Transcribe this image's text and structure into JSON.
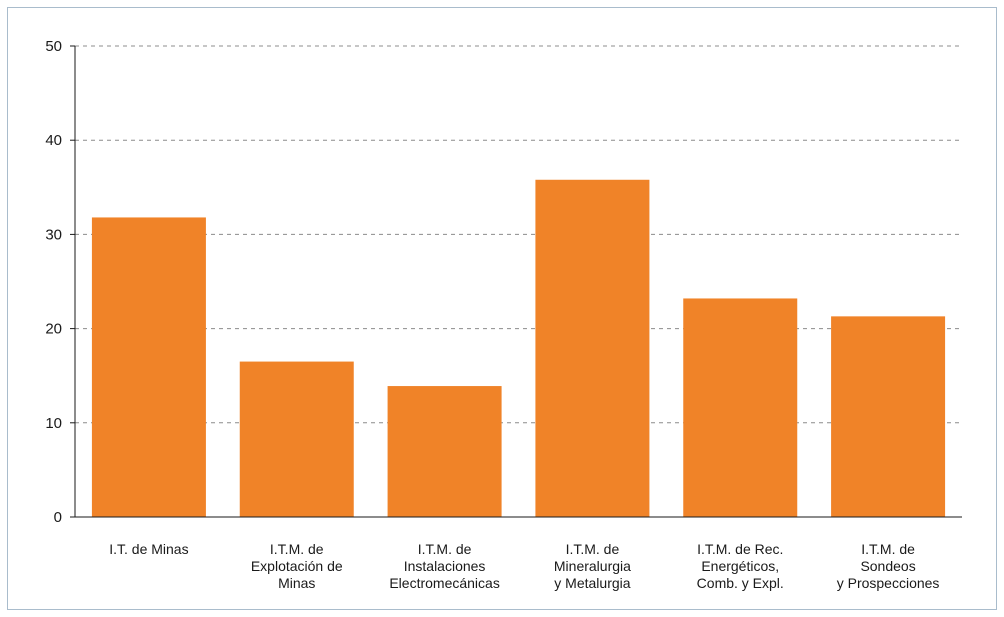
{
  "chart_data": {
    "type": "bar",
    "title": "",
    "xlabel": "",
    "ylabel": "",
    "ylim": [
      0,
      50
    ],
    "yticks": [
      0,
      10,
      20,
      30,
      40,
      50
    ],
    "grid": true,
    "legend": "none",
    "bar_color": "#f08328",
    "categories": [
      [
        "I.T. de Minas"
      ],
      [
        "I.T.M. de",
        "Explotación de",
        "Minas"
      ],
      [
        "I.T.M. de",
        "Instalaciones",
        "Electromecánicas"
      ],
      [
        "I.T.M. de",
        "Mineralurgia",
        "y Metalurgia"
      ],
      [
        "I.T.M. de Rec.",
        "Energéticos,",
        "Comb. y Expl."
      ],
      [
        "I.T.M. de",
        "Sondeos",
        "y Prospecciones"
      ]
    ],
    "values": [
      31.8,
      16.5,
      13.9,
      35.8,
      23.2,
      21.3
    ]
  }
}
